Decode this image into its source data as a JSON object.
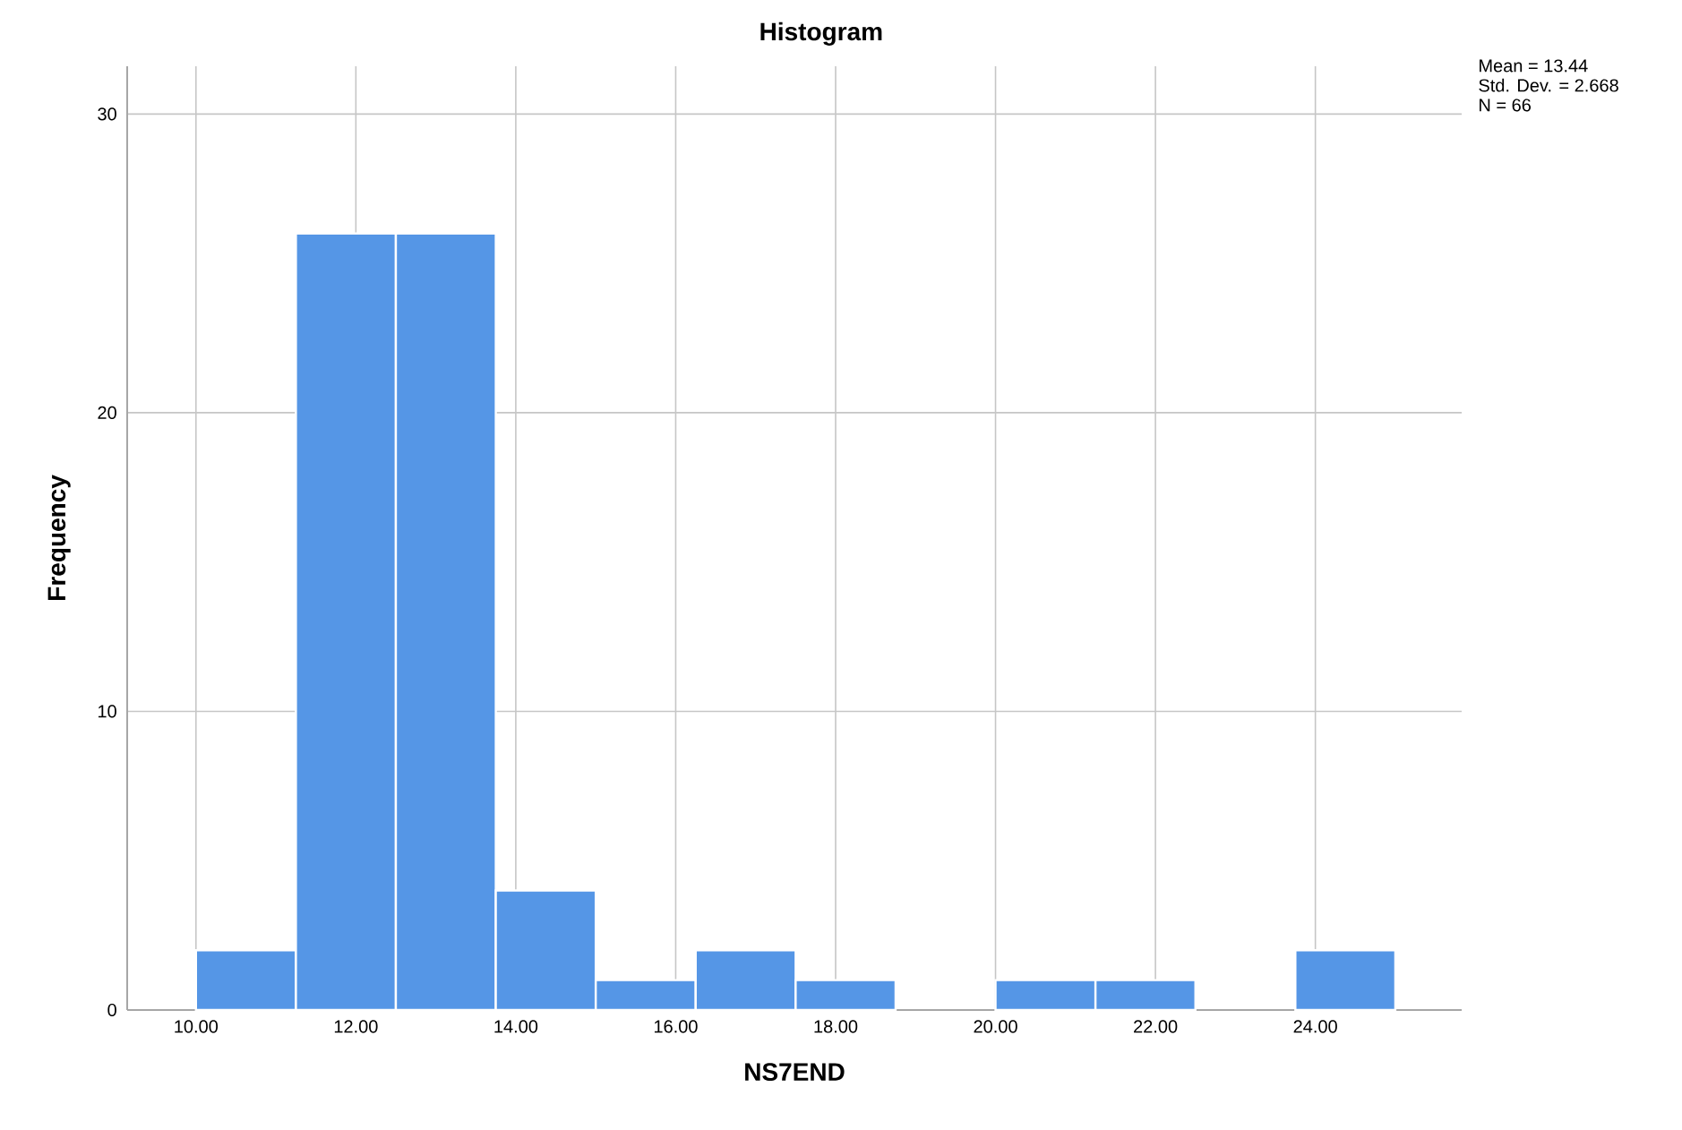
{
  "chart_data": {
    "type": "histogram",
    "title": "Histogram",
    "xlabel": "NS7END",
    "ylabel": "Frequency",
    "bins": [
      10,
      11.25,
      12.5,
      13.75,
      15,
      16.25,
      17.5,
      18.75,
      20,
      21.25,
      22.5,
      23.75,
      25
    ],
    "values": [
      2,
      26,
      26,
      4,
      1,
      2,
      1,
      0,
      1,
      1,
      0,
      2
    ],
    "color": "#5596e6",
    "xlim": [
      9.14,
      25.83
    ],
    "ylim": [
      0,
      31.6
    ],
    "xticks": [
      {
        "value": 10,
        "label": "10.00"
      },
      {
        "value": 12,
        "label": "12.00"
      },
      {
        "value": 14,
        "label": "14.00"
      },
      {
        "value": 16,
        "label": "16.00"
      },
      {
        "value": 18,
        "label": "18.00"
      },
      {
        "value": 20,
        "label": "20.00"
      },
      {
        "value": 22,
        "label": "22.00"
      },
      {
        "value": 24,
        "label": "24.00"
      }
    ],
    "yticks": [
      0,
      10,
      20,
      30
    ],
    "grid": true,
    "annotations": [
      "Mean = 13.44",
      "Std. Dev. = 2.668",
      "N = 66"
    ]
  }
}
